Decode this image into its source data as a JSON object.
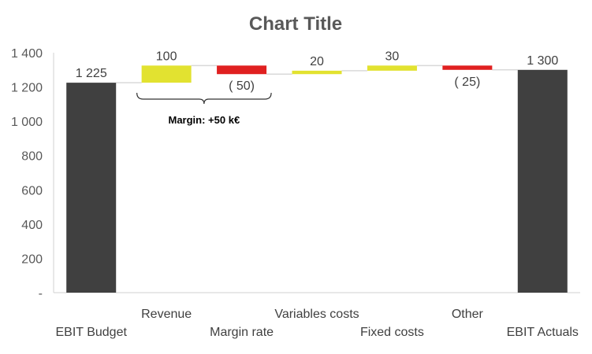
{
  "chart_data": {
    "type": "waterfall",
    "title": "Chart Title",
    "xlabel": "",
    "ylabel": "",
    "ylim": [
      0,
      1400
    ],
    "y_ticks": [
      {
        "value": 0,
        "label": "-"
      },
      {
        "value": 200,
        "label": "200"
      },
      {
        "value": 400,
        "label": "400"
      },
      {
        "value": 600,
        "label": "600"
      },
      {
        "value": 800,
        "label": "800"
      },
      {
        "value": 1000,
        "label": "1 000"
      },
      {
        "value": 1200,
        "label": "1 200"
      },
      {
        "value": 1400,
        "label": "1 400"
      }
    ],
    "grid": false,
    "legend": "none",
    "categories": [
      "EBIT Budget",
      "Revenue",
      "Margin rate",
      "Variables costs",
      "Fixed costs",
      "Other",
      "EBIT Actuals"
    ],
    "bars": [
      {
        "category": "EBIT Budget",
        "kind": "total",
        "start": 0,
        "end": 1225,
        "label": "1 225",
        "color": "#404040"
      },
      {
        "category": "Revenue",
        "kind": "increase",
        "start": 1225,
        "end": 1325,
        "label": "100",
        "color": "#E2E230"
      },
      {
        "category": "Margin rate",
        "kind": "decrease",
        "start": 1325,
        "end": 1275,
        "label": "( 50)",
        "color": "#E02020"
      },
      {
        "category": "Variables costs",
        "kind": "increase",
        "start": 1275,
        "end": 1295,
        "label": "20",
        "color": "#E2E230"
      },
      {
        "category": "Fixed costs",
        "kind": "increase",
        "start": 1295,
        "end": 1325,
        "label": "30",
        "color": "#E2E230"
      },
      {
        "category": "Other",
        "kind": "decrease",
        "start": 1325,
        "end": 1300,
        "label": "( 25)",
        "color": "#E02020"
      },
      {
        "category": "EBIT Actuals",
        "kind": "total",
        "start": 0,
        "end": 1300,
        "label": "1 300",
        "color": "#404040"
      }
    ],
    "annotations": [
      {
        "text": "Margin: +50 k€",
        "from_category": "Revenue",
        "to_category": "Margin rate"
      }
    ]
  }
}
